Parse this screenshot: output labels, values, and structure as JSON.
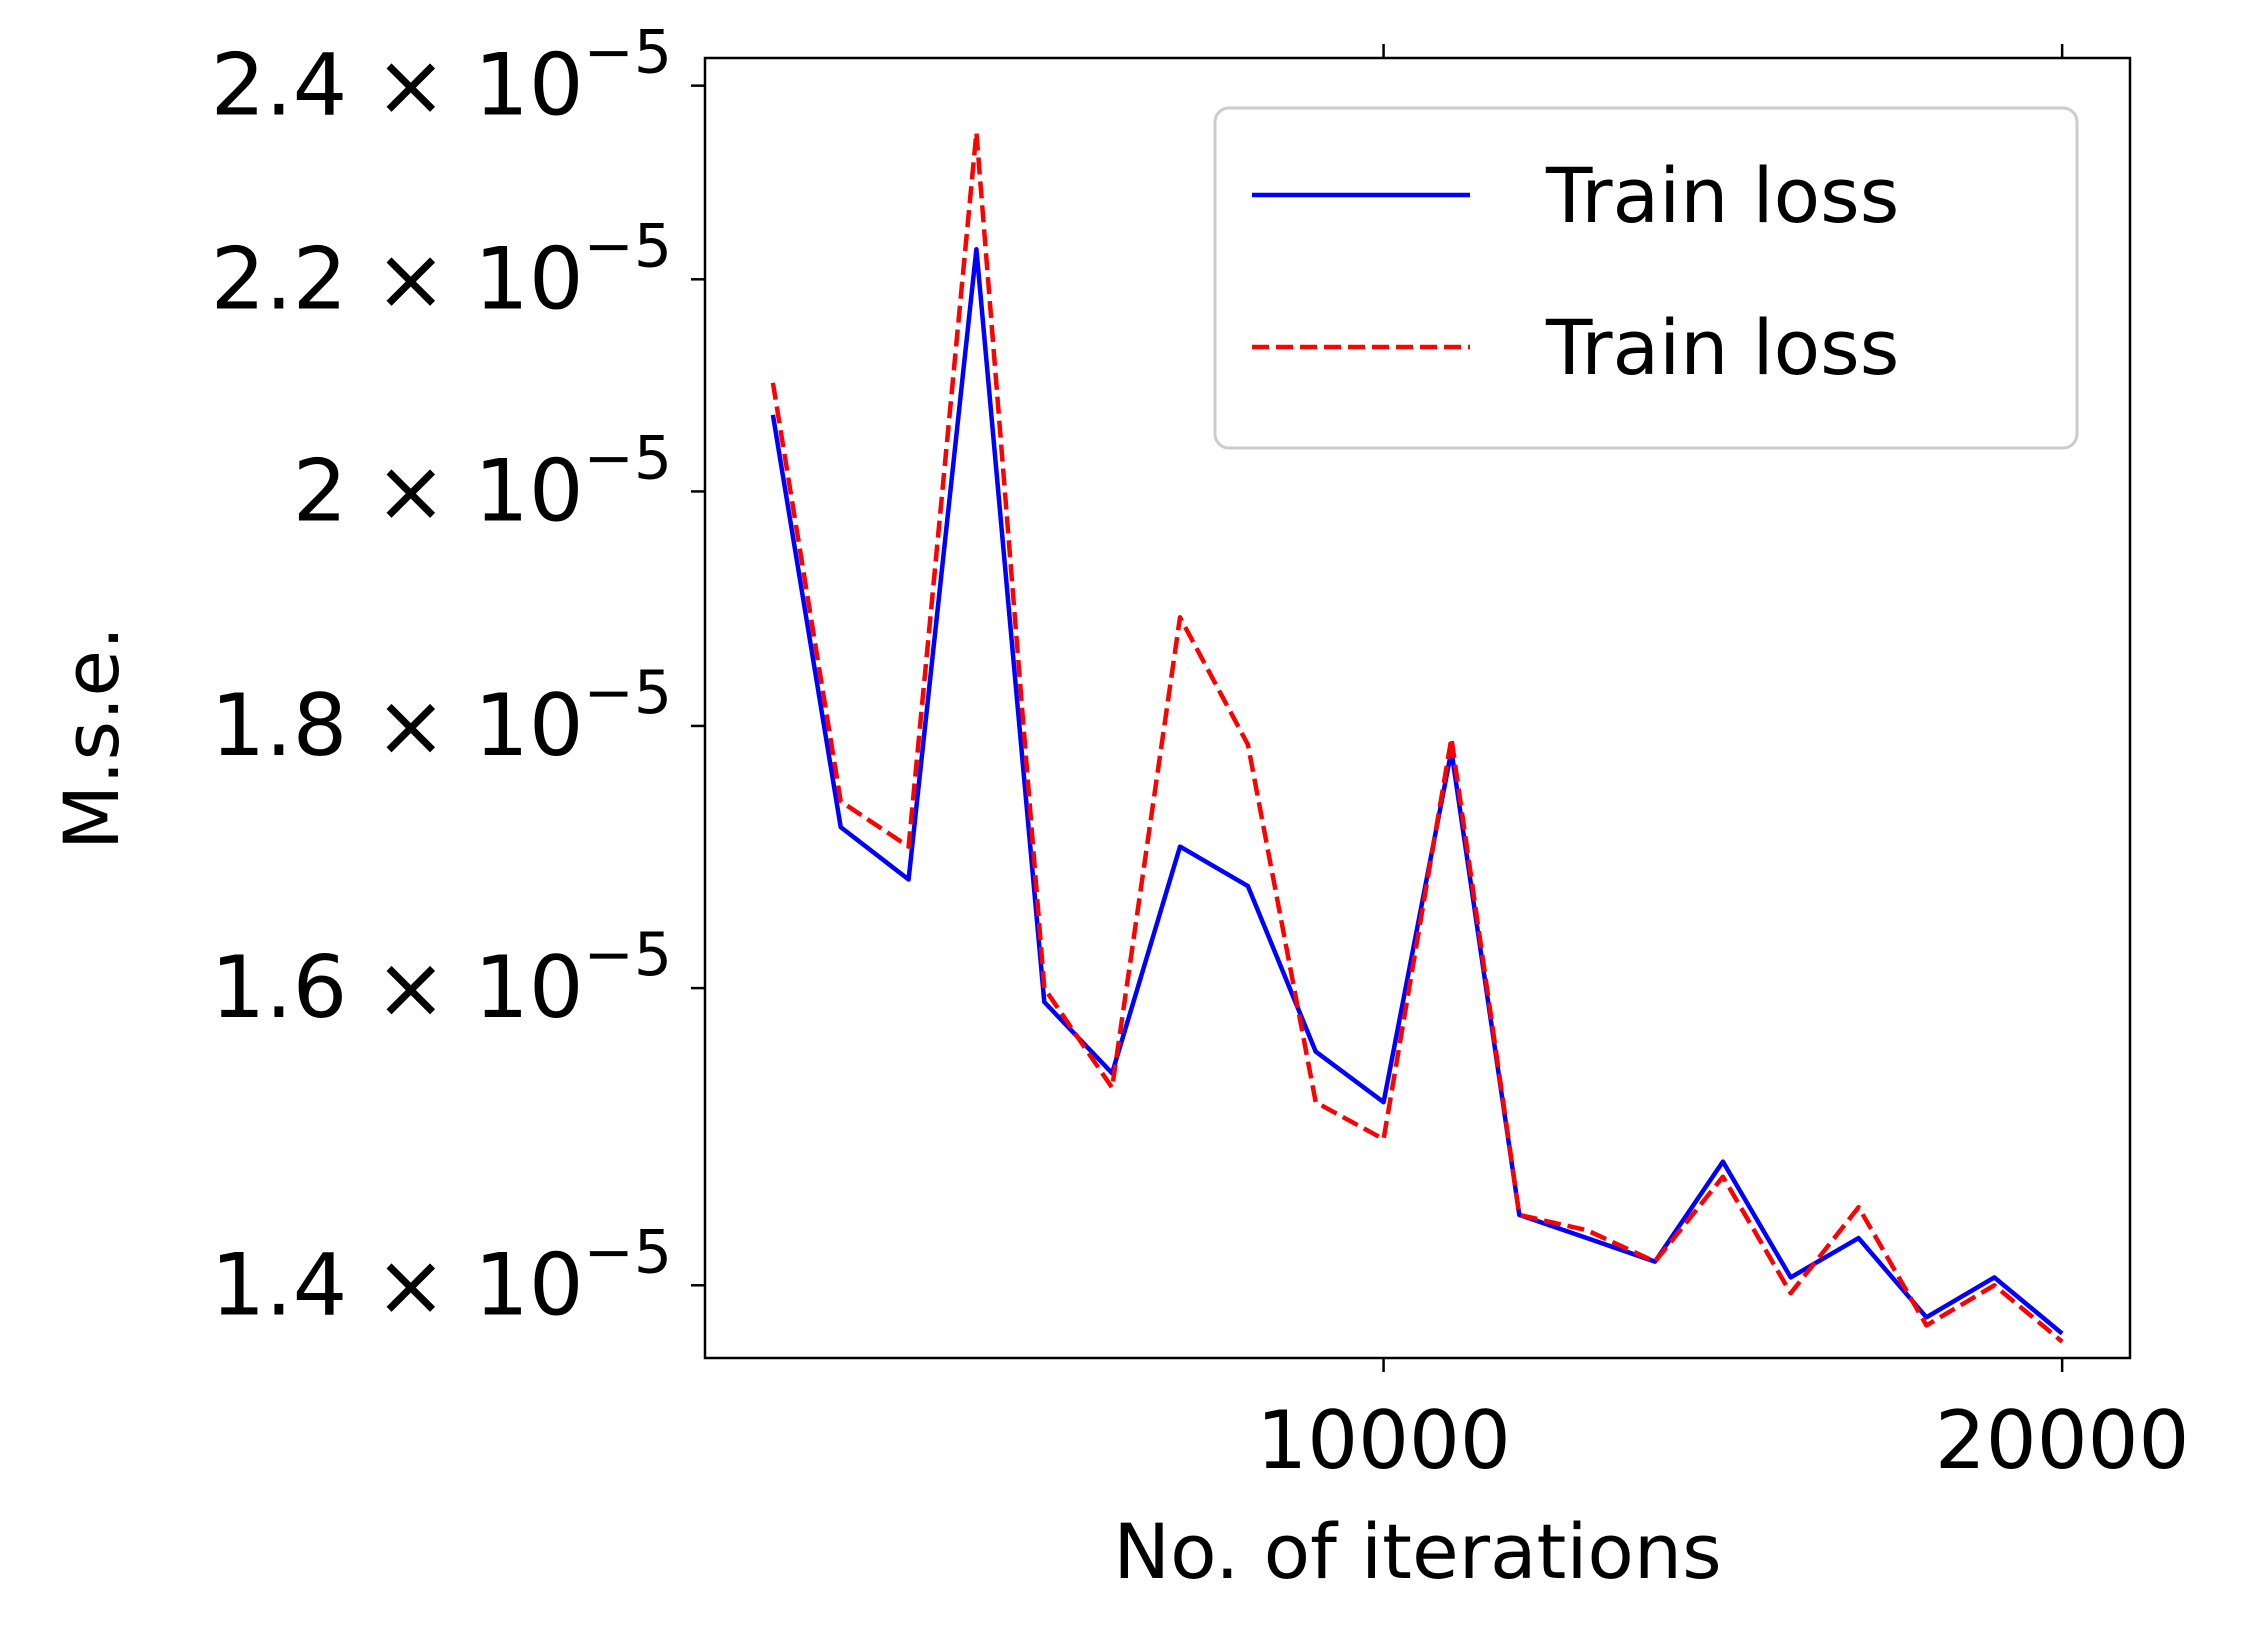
{
  "chart_data": {
    "type": "line",
    "xlabel": "No. of iterations",
    "ylabel": "M.s.e.",
    "yscale": "log",
    "xlim": [
      0,
      21000
    ],
    "ylim": [
      1.355e-05,
      2.43e-05
    ],
    "xticks": [
      {
        "value": 10000,
        "label": "10000"
      },
      {
        "value": 20000,
        "label": "20000"
      }
    ],
    "yticks": [
      {
        "value": 1.4e-05,
        "mantissa": "1.4",
        "base": "10",
        "exponent": "−5"
      },
      {
        "value": 1.6e-05,
        "mantissa": "1.6",
        "base": "10",
        "exponent": "−5"
      },
      {
        "value": 1.8e-05,
        "mantissa": "1.8",
        "base": "10",
        "exponent": "−5"
      },
      {
        "value": 2e-05,
        "mantissa": "2",
        "base": "10",
        "exponent": "−5"
      },
      {
        "value": 2.2e-05,
        "mantissa": "2.2",
        "base": "10",
        "exponent": "−5"
      },
      {
        "value": 2.4e-05,
        "mantissa": "2.4",
        "base": "10",
        "exponent": "−5"
      }
    ],
    "x": [
      1000,
      2000,
      3000,
      4000,
      5000,
      6000,
      7000,
      8000,
      9000,
      10000,
      11000,
      12000,
      13000,
      14000,
      15000,
      16000,
      17000,
      18000,
      19000,
      20000
    ],
    "series": [
      {
        "name": "Train loss",
        "color": "#0000ff",
        "style": "solid",
        "values": [
          2.07e-05,
          1.72e-05,
          1.68e-05,
          2.23e-05,
          1.59e-05,
          1.54e-05,
          1.705e-05,
          1.675e-05,
          1.555e-05,
          1.52e-05,
          1.78e-05,
          1.445e-05,
          1.43e-05,
          1.415e-05,
          1.48e-05,
          1.405e-05,
          1.43e-05,
          1.38e-05,
          1.405e-05,
          1.37e-05
        ]
      },
      {
        "name": "Train loss",
        "color": "#ff0000",
        "style": "dashed",
        "values": [
          2.1e-05,
          1.74e-05,
          1.705e-05,
          2.35e-05,
          1.6e-05,
          1.53e-05,
          1.89e-05,
          1.785e-05,
          1.52e-05,
          1.495e-05,
          1.79e-05,
          1.445e-05,
          1.435e-05,
          1.415e-05,
          1.47e-05,
          1.395e-05,
          1.45e-05,
          1.375e-05,
          1.4e-05,
          1.365e-05
        ]
      }
    ],
    "legend": {
      "placement": "top-right"
    },
    "grid": false
  }
}
